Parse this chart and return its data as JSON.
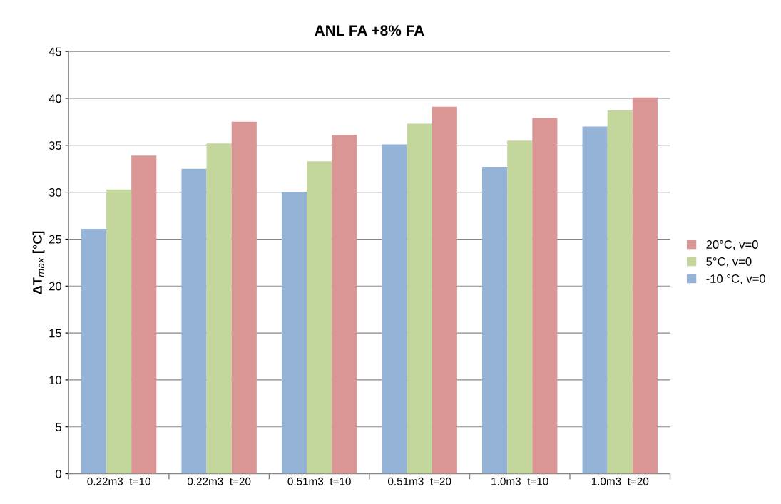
{
  "chart_data": {
    "type": "bar",
    "title": "ANL FA +8% FA",
    "ylabel": "ΔT$_{max}$ [°C]",
    "categories": [
      "0.22m3  t=10",
      "0.22m3  t=20",
      "0.51m3  t=10",
      "0.51m3  t=20",
      "1.0m3  t=10",
      "1.0m3  t=20"
    ],
    "series": [
      {
        "name": "-10 °C, v=0",
        "color": "#95b3d7",
        "values": [
          26.1,
          32.5,
          30.0,
          35.1,
          32.7,
          37.0
        ]
      },
      {
        "name": "5°C, v=0",
        "color": "#c3d69b",
        "values": [
          30.3,
          35.2,
          33.3,
          37.3,
          35.5,
          38.7
        ]
      },
      {
        "name": "20°C, v=0",
        "color": "#d99694",
        "values": [
          33.9,
          37.5,
          36.1,
          39.1,
          37.9,
          40.1
        ]
      }
    ],
    "ylim": [
      0,
      45
    ],
    "yticks": [
      0,
      5,
      10,
      15,
      20,
      25,
      30,
      35,
      40,
      45
    ],
    "grid": "y",
    "legend": "right"
  }
}
